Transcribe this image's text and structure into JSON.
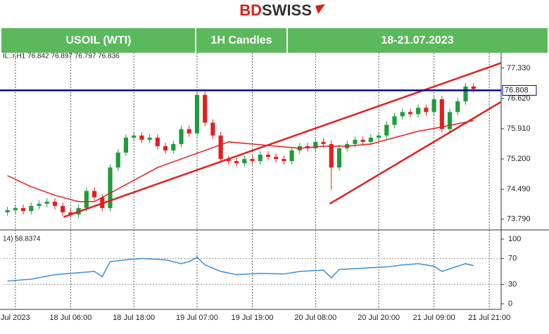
{
  "header": {
    "logo_a": "BD",
    "logo_b": "SWISS",
    "cells": [
      "USOIL (WTI)",
      "1H Candles",
      "18-21.07.2023"
    ]
  },
  "chart_data": {
    "type": "candlestick",
    "info": "IL..r,H1  76.842 76.897 76.797 76.836",
    "xlim": [
      -0.5,
      62.5
    ],
    "xticks": [
      {
        "value": 1,
        "label": "Jul 2023"
      },
      {
        "value": 8,
        "label": "18 Jul 06:00"
      },
      {
        "value": 16,
        "label": "18 Jul 18:00"
      },
      {
        "value": 24,
        "label": "19 Jul 07:00"
      },
      {
        "value": 31,
        "label": "19 Jul 19:00"
      },
      {
        "value": 39,
        "label": "20 Jul 08:00"
      },
      {
        "value": 47,
        "label": "20 Jul 20:00"
      },
      {
        "value": 54,
        "label": "21 Jul 09:00"
      },
      {
        "value": 61,
        "label": "21 Jul 21:00"
      }
    ],
    "ylim": [
      73.57,
      77.69
    ],
    "yticks": [
      {
        "value": 77.33,
        "label": "77.330"
      },
      {
        "value": 76.62,
        "label": "76.620"
      },
      {
        "value": 75.91,
        "label": "75.910"
      },
      {
        "value": 75.2,
        "label": "75.200"
      },
      {
        "value": 74.49,
        "label": "74.490"
      },
      {
        "value": 73.79,
        "label": "73.790"
      }
    ],
    "up_color": "#1e9c3c",
    "down_color": "#e02020",
    "open": [
      73.95,
      74.0,
      74.05,
      73.98,
      74.1,
      74.15,
      74.2,
      74.1,
      73.95,
      73.9,
      74.05,
      74.45,
      74.3,
      74.05,
      75.0,
      75.35,
      75.7,
      75.75,
      75.65,
      75.7,
      75.5,
      75.4,
      75.55,
      75.9,
      75.8,
      76.7,
      76.05,
      75.75,
      75.2,
      75.15,
      75.1,
      75.2,
      75.15,
      75.3,
      75.25,
      75.2,
      75.15,
      75.4,
      75.5,
      75.45,
      75.6,
      75.55,
      75.0,
      75.45,
      75.55,
      75.65,
      75.6,
      75.7,
      75.75,
      76.0,
      76.2,
      76.3,
      76.25,
      76.4,
      76.3,
      76.6,
      75.9,
      76.3,
      76.55,
      76.9
    ],
    "high": [
      74.08,
      74.13,
      74.13,
      74.18,
      74.23,
      74.28,
      74.28,
      74.18,
      74.03,
      74.13,
      74.53,
      74.53,
      74.38,
      75.08,
      75.43,
      75.78,
      75.83,
      75.83,
      75.78,
      75.78,
      75.58,
      75.63,
      75.98,
      75.98,
      76.78,
      76.78,
      76.13,
      75.83,
      75.28,
      75.23,
      75.28,
      75.28,
      75.38,
      75.38,
      75.33,
      75.28,
      75.48,
      75.58,
      75.58,
      75.68,
      75.68,
      75.63,
      75.53,
      75.63,
      75.73,
      75.73,
      75.78,
      75.83,
      76.08,
      76.28,
      76.38,
      76.38,
      76.48,
      76.48,
      76.68,
      76.68,
      76.38,
      76.63,
      76.98,
      76.98
    ],
    "low": [
      73.87,
      73.92,
      73.9,
      73.9,
      74.02,
      74.07,
      74.02,
      73.87,
      73.82,
      73.82,
      73.97,
      74.22,
      73.97,
      73.97,
      74.92,
      75.27,
      75.62,
      75.57,
      75.57,
      75.42,
      75.32,
      75.32,
      75.47,
      75.72,
      75.72,
      75.97,
      75.67,
      75.12,
      75.07,
      75.02,
      75.02,
      75.07,
      75.07,
      75.17,
      75.12,
      75.07,
      75.07,
      75.32,
      75.37,
      75.37,
      75.47,
      74.48,
      74.92,
      75.37,
      75.47,
      75.52,
      75.52,
      75.62,
      75.67,
      75.92,
      76.12,
      76.17,
      76.17,
      76.22,
      76.22,
      75.82,
      75.82,
      76.22,
      76.47,
      76.76
    ],
    "close": [
      74.0,
      74.05,
      73.98,
      74.1,
      74.15,
      74.2,
      74.1,
      73.95,
      73.9,
      74.05,
      74.45,
      74.3,
      74.05,
      75.0,
      75.35,
      75.7,
      75.75,
      75.65,
      75.7,
      75.5,
      75.4,
      75.55,
      75.9,
      75.8,
      76.7,
      76.05,
      75.75,
      75.2,
      75.15,
      75.1,
      75.2,
      75.15,
      75.3,
      75.25,
      75.2,
      75.15,
      75.4,
      75.5,
      75.45,
      75.6,
      75.55,
      75.0,
      75.45,
      75.55,
      75.65,
      75.6,
      75.7,
      75.75,
      76.0,
      76.2,
      76.3,
      76.25,
      76.4,
      76.3,
      76.6,
      75.9,
      76.3,
      76.55,
      76.9,
      76.84
    ],
    "ma": {
      "color": "#e02020",
      "x": [
        0,
        3,
        6,
        9,
        11,
        13,
        16,
        19,
        22,
        25,
        28,
        31,
        34,
        37,
        40,
        43,
        46,
        49,
        52,
        55,
        59
      ],
      "values": [
        74.81,
        74.55,
        74.35,
        74.2,
        74.2,
        74.4,
        74.7,
        75.0,
        75.2,
        75.4,
        75.6,
        75.55,
        75.5,
        75.45,
        75.5,
        75.5,
        75.55,
        75.7,
        75.85,
        75.95,
        76.1
      ]
    },
    "trendlines": [
      {
        "color": "#e02020",
        "x": [
          7.1,
          62.5
        ],
        "values": [
          73.84,
          77.45
        ]
      },
      {
        "color": "#e02020",
        "x": [
          40.8,
          62.5
        ],
        "values": [
          74.15,
          76.54
        ]
      }
    ],
    "hline": {
      "color": "#0a0a8c",
      "value": 76.808
    },
    "rsi": {
      "label": "14) 58.8374",
      "color": "#3a8fd8",
      "ylim": [
        0,
        100
      ],
      "yticks": [
        100,
        70,
        30,
        0
      ],
      "x": [
        0,
        3,
        6,
        9,
        11,
        12,
        13,
        15,
        17,
        20,
        22,
        23,
        24,
        25,
        27,
        29,
        32,
        35,
        37,
        40,
        41,
        42,
        45,
        48,
        50,
        52,
        54,
        55,
        57,
        58,
        59
      ],
      "values": [
        35,
        38,
        45,
        48,
        50,
        42,
        65,
        68,
        70,
        68,
        62,
        65,
        72,
        60,
        50,
        45,
        47,
        46,
        50,
        52,
        40,
        53,
        55,
        57,
        60,
        62,
        58,
        50,
        58,
        62,
        59
      ]
    }
  }
}
